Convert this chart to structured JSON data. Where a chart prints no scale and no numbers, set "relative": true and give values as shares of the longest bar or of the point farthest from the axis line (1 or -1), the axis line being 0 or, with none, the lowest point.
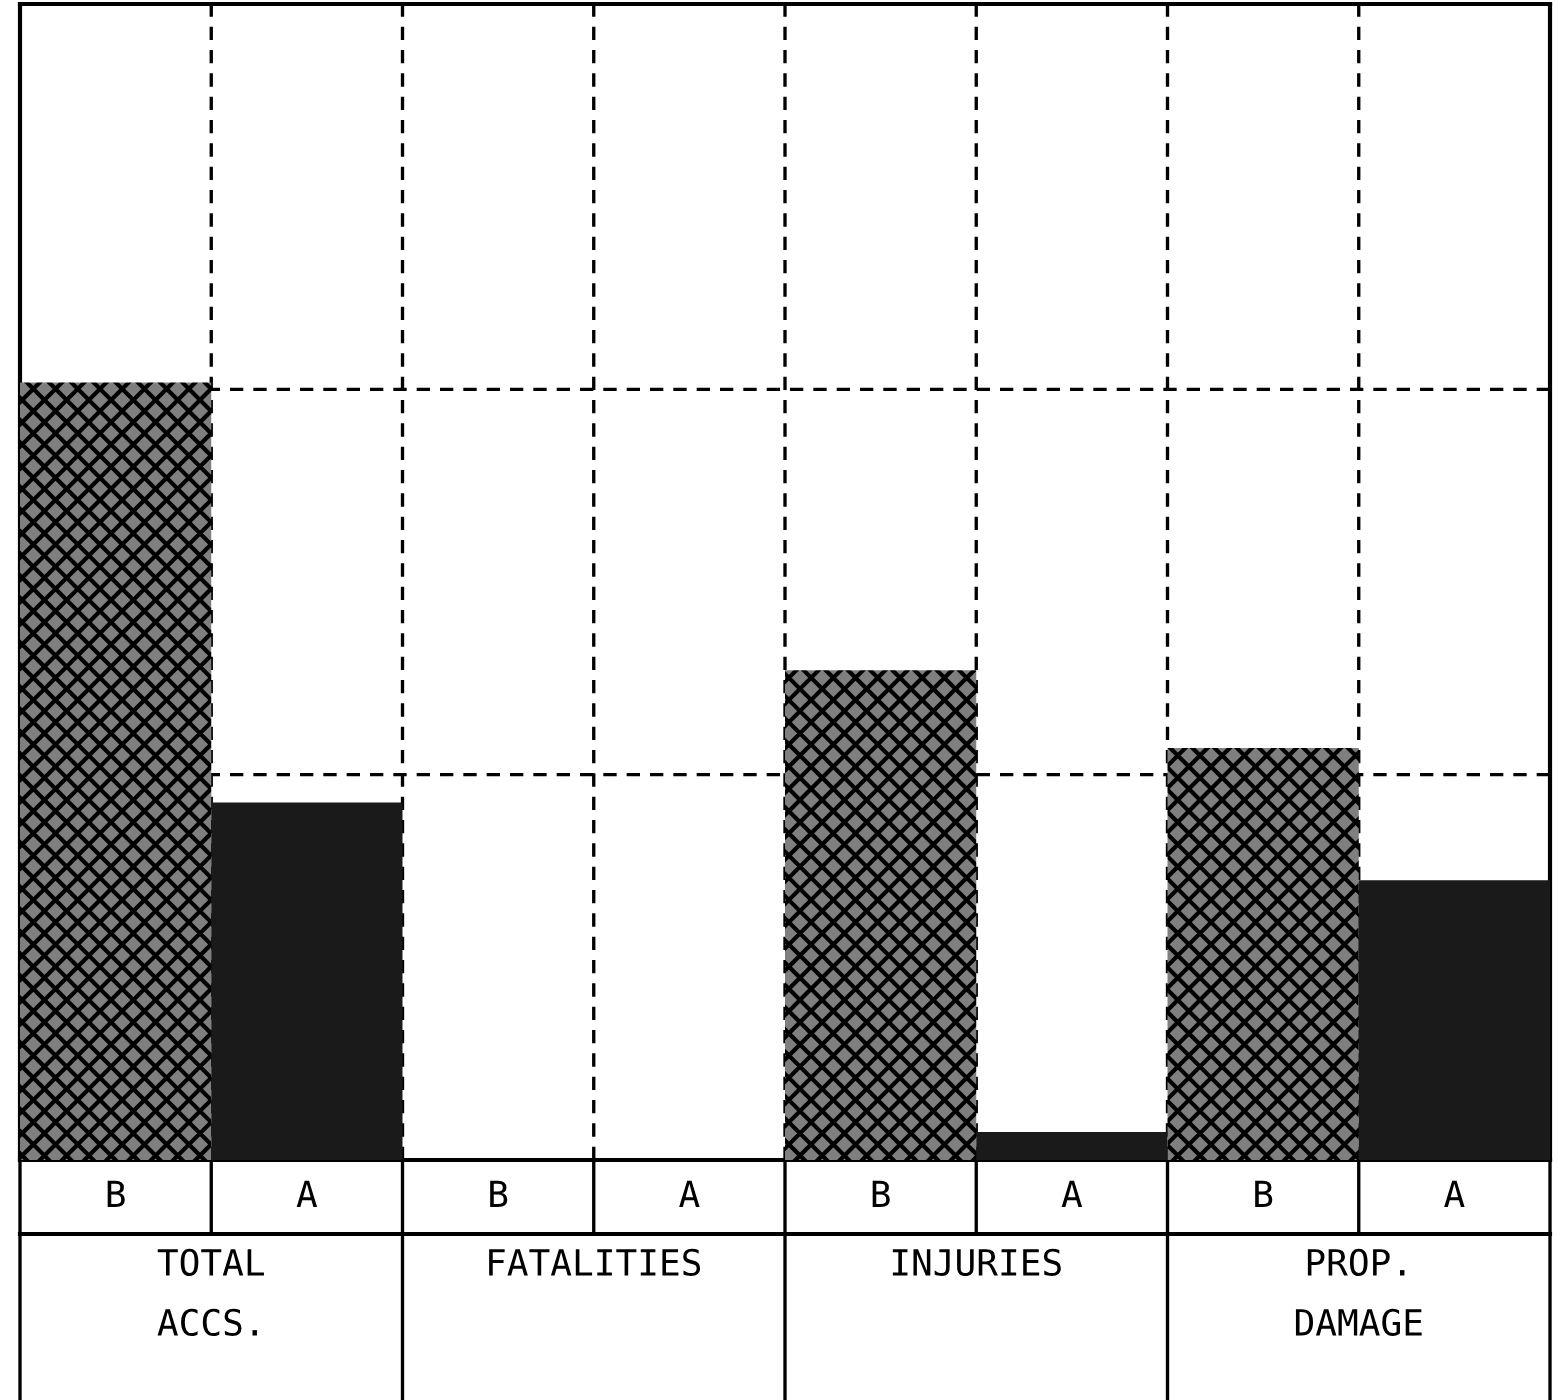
{
  "chart_data": {
    "type": "bar",
    "relative": true,
    "grid": true,
    "categories": [
      "TOTAL\nACCS.",
      "FATALITIES",
      "INJURIES",
      "PROP.\nDAMAGE"
    ],
    "series": [
      {
        "name": "B",
        "color": "#7f7f7f",
        "values": [
          1,
          0,
          0.63,
          0.53
        ]
      },
      {
        "name": "A",
        "color": "#1a1a1a",
        "values": [
          0.46,
          0,
          0.036,
          0.36
        ]
      }
    ]
  }
}
